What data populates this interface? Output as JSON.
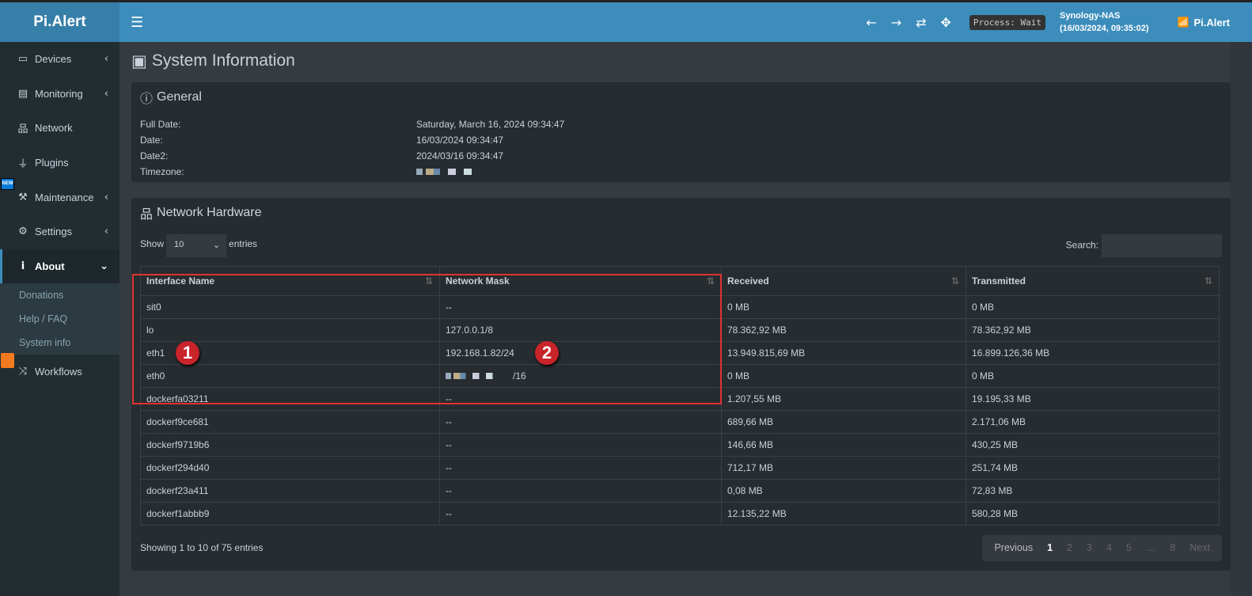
{
  "app": {
    "logo": "Pi.Alert",
    "brand": "Pi.Alert",
    "process": "Process: Wait",
    "host": "Synology-NAS",
    "host_time": "(16/03/2024, 09:35:02)"
  },
  "sidebar": {
    "items": [
      {
        "label": "Devices",
        "icon": "laptop-icon"
      },
      {
        "label": "Monitoring",
        "icon": "chart-icon"
      },
      {
        "label": "Network",
        "icon": "network-icon"
      },
      {
        "label": "Plugins",
        "icon": "plug-icon"
      },
      {
        "label": "Maintenance",
        "icon": "wrench-icon"
      },
      {
        "label": "Settings",
        "icon": "gear-icon"
      },
      {
        "label": "About",
        "icon": "info-icon"
      }
    ],
    "about_sub": [
      "Donations",
      "Help / FAQ",
      "System info"
    ],
    "workflows": "Workflows",
    "new_badge": "NEW"
  },
  "page": {
    "title": "System Information"
  },
  "general": {
    "title": "General",
    "rows": [
      {
        "k": "Full Date:",
        "v": "Saturday, March 16, 2024 09:34:47"
      },
      {
        "k": "Date:",
        "v": "16/03/2024 09:34:47"
      },
      {
        "k": "Date2:",
        "v": "2024/03/16 09:34:47"
      },
      {
        "k": "Timezone:",
        "v": ""
      }
    ]
  },
  "network": {
    "title": "Network Hardware",
    "show": "Show",
    "entries_value": "10",
    "entries": "entries",
    "search": "Search:",
    "headers": [
      "Interface Name",
      "Network Mask",
      "Received",
      "Transmitted"
    ],
    "rows": [
      [
        "sit0",
        "--",
        "0 MB",
        "0 MB"
      ],
      [
        "lo",
        "127.0.0.1/8",
        "78.362,92 MB",
        "78.362,92 MB"
      ],
      [
        "eth1",
        "192.168.1.82/24",
        "13.949.815,69 MB",
        "16.899.126,36 MB"
      ],
      [
        "eth0",
        "/16",
        "0 MB",
        "0 MB"
      ],
      [
        "dockerfa03211",
        "--",
        "1.207,55 MB",
        "19.195,33 MB"
      ],
      [
        "dockerf9ce681",
        "--",
        "689,66 MB",
        "2.171,06 MB"
      ],
      [
        "dockerf9719b6",
        "--",
        "146,66 MB",
        "430,25 MB"
      ],
      [
        "dockerf294d40",
        "--",
        "712,17 MB",
        "251,74 MB"
      ],
      [
        "dockerf23a411",
        "--",
        "0,08 MB",
        "72,83 MB"
      ],
      [
        "dockerf1abbb9",
        "--",
        "12.135,22 MB",
        "580,28 MB"
      ]
    ],
    "info": "Showing 1 to 10 of 75 entries",
    "pager": [
      "Previous",
      "1",
      "2",
      "3",
      "4",
      "5",
      "…",
      "8",
      "Next"
    ]
  },
  "annotations": [
    "1",
    "2"
  ],
  "colors": {
    "header": "#3c8dbc",
    "sidebar": "#222d32",
    "marker": "#c8242a"
  }
}
